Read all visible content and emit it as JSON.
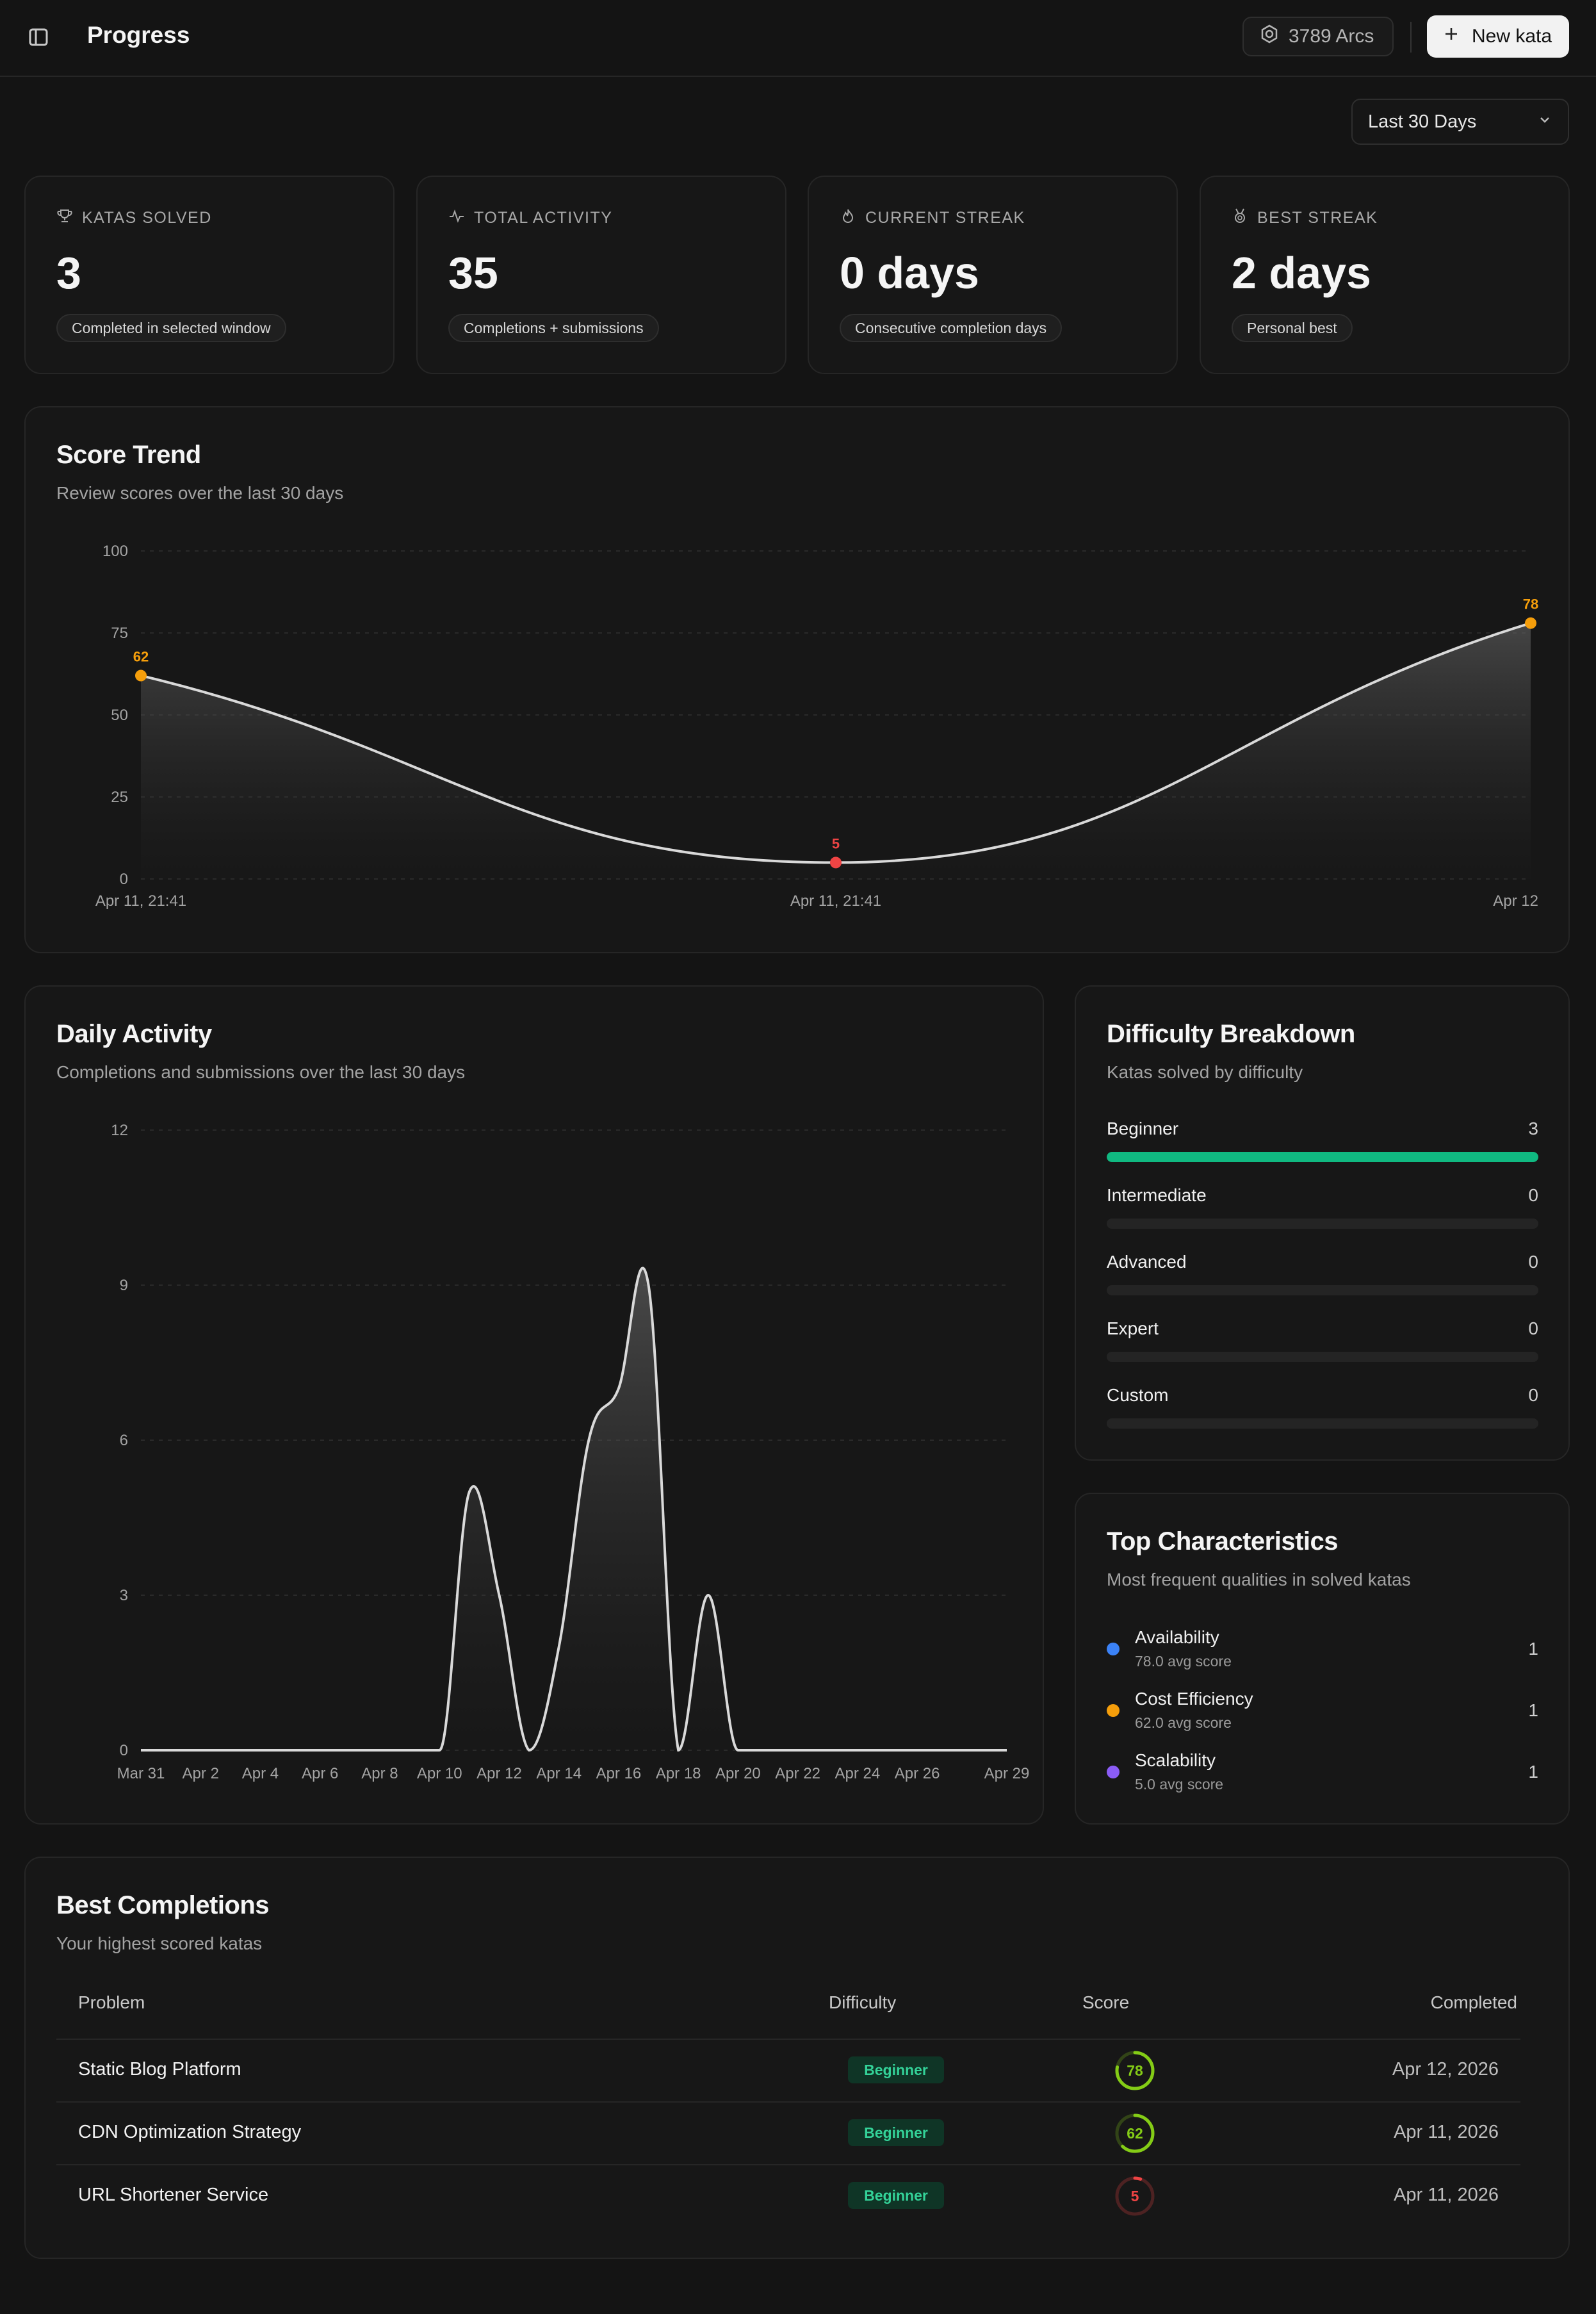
{
  "header": {
    "title": "Progress",
    "sidebar_toggle_icon": "sidebar-toggle-icon",
    "arcs_label": "3789 Arcs",
    "arcs_icon": "hexagon-icon",
    "new_kata_label": "New kata",
    "new_kata_icon": "plus-icon"
  },
  "range": {
    "selected": "Last 30 Days"
  },
  "stats": [
    {
      "label": "KATAS SOLVED",
      "value": "3",
      "note": "Completed in selected window",
      "icon": "trophy-icon"
    },
    {
      "label": "TOTAL ACTIVITY",
      "value": "35",
      "note": "Completions + submissions",
      "icon": "activity-icon"
    },
    {
      "label": "CURRENT STREAK",
      "value": "0 days",
      "note": "Consecutive completion days",
      "icon": "flame-icon"
    },
    {
      "label": "BEST STREAK",
      "value": "2 days",
      "note": "Personal best",
      "icon": "medal-icon"
    }
  ],
  "score_trend": {
    "title": "Score Trend",
    "subtitle": "Review scores over the last 30 days"
  },
  "daily_activity": {
    "title": "Daily Activity",
    "subtitle": "Completions and submissions over the last 30 days"
  },
  "chart_data": [
    {
      "type": "area",
      "title": "Score Trend",
      "y_ticks": [
        0,
        25,
        50,
        75,
        100
      ],
      "ylim": [
        0,
        100
      ],
      "points": [
        {
          "x": "Apr 11, 21:41",
          "y": 62
        },
        {
          "x": "Apr 11, 21:41",
          "y": 5
        },
        {
          "x": "Apr 12",
          "y": 78
        }
      ],
      "point_colors": [
        "#f59e0b",
        "#ef4444",
        "#f59e0b"
      ],
      "grid": true
    },
    {
      "type": "area",
      "title": "Daily Activity",
      "y_ticks": [
        0,
        3,
        6,
        9,
        12
      ],
      "ylim": [
        0,
        12
      ],
      "x": [
        "Mar 31",
        "Apr 1",
        "Apr 2",
        "Apr 3",
        "Apr 4",
        "Apr 5",
        "Apr 6",
        "Apr 7",
        "Apr 8",
        "Apr 9",
        "Apr 10",
        "Apr 11",
        "Apr 12",
        "Apr 13",
        "Apr 14",
        "Apr 15",
        "Apr 16",
        "Apr 17",
        "Apr 18",
        "Apr 19",
        "Apr 20",
        "Apr 21",
        "Apr 22",
        "Apr 23",
        "Apr 24",
        "Apr 25",
        "Apr 26",
        "Apr 27",
        "Apr 28",
        "Apr 29"
      ],
      "x_tick_labels": [
        "Mar 31",
        "Apr 2",
        "Apr 4",
        "Apr 6",
        "Apr 8",
        "Apr 10",
        "Apr 12",
        "Apr 14",
        "Apr 16",
        "Apr 18",
        "Apr 20",
        "Apr 22",
        "Apr 24",
        "Apr 26",
        "Apr 29"
      ],
      "values": [
        0,
        0,
        0,
        0,
        0,
        0,
        0,
        0,
        0,
        0,
        0,
        5,
        3,
        0,
        2,
        6,
        7,
        9,
        0,
        3,
        0,
        0,
        0,
        0,
        0,
        0,
        0,
        0,
        0,
        0
      ],
      "grid": true
    }
  ],
  "difficulty": {
    "title": "Difficulty Breakdown",
    "subtitle": "Katas solved by difficulty",
    "rows": [
      {
        "label": "Beginner",
        "count": "3",
        "fraction": 1.0
      },
      {
        "label": "Intermediate",
        "count": "0",
        "fraction": 0
      },
      {
        "label": "Advanced",
        "count": "0",
        "fraction": 0
      },
      {
        "label": "Expert",
        "count": "0",
        "fraction": 0
      },
      {
        "label": "Custom",
        "count": "0",
        "fraction": 0
      }
    ],
    "fill_color": "#10b981"
  },
  "characteristics": {
    "title": "Top Characteristics",
    "subtitle": "Most frequent qualities in solved katas",
    "rows": [
      {
        "name": "Availability",
        "sub": "78.0 avg score",
        "count": "1",
        "color": "#3b82f6"
      },
      {
        "name": "Cost Efficiency",
        "sub": "62.0 avg score",
        "count": "1",
        "color": "#f59e0b"
      },
      {
        "name": "Scalability",
        "sub": "5.0 avg score",
        "count": "1",
        "color": "#8b5cf6"
      }
    ]
  },
  "completions": {
    "title": "Best Completions",
    "subtitle": "Your highest scored katas",
    "columns": {
      "problem": "Problem",
      "difficulty": "Difficulty",
      "score": "Score",
      "completed": "Completed"
    },
    "rows": [
      {
        "problem": "Static Blog Platform",
        "difficulty": "Beginner",
        "score": "78",
        "score_value": 78,
        "color": "#84cc16",
        "completed": "Apr 12, 2026"
      },
      {
        "problem": "CDN Optimization Strategy",
        "difficulty": "Beginner",
        "score": "62",
        "score_value": 62,
        "color": "#84cc16",
        "completed": "Apr 11, 2026"
      },
      {
        "problem": "URL Shortener Service",
        "difficulty": "Beginner",
        "score": "5",
        "score_value": 5,
        "color": "#ef4444",
        "completed": "Apr 11, 2026"
      }
    ]
  }
}
